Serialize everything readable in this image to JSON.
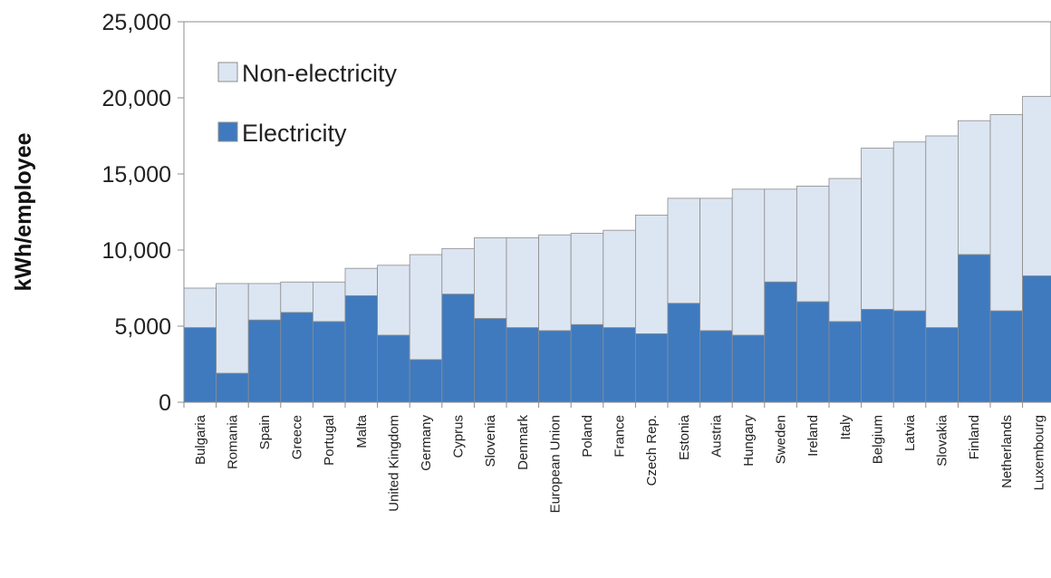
{
  "chart_data": {
    "type": "bar",
    "stacked": true,
    "title": "",
    "xlabel": "",
    "ylabel": "kWh/employee",
    "ylim": [
      0,
      25000
    ],
    "yticks": [
      "0",
      "5,000",
      "10,000",
      "15,000",
      "20,000",
      "25,000"
    ],
    "ytick_values": [
      0,
      5000,
      10000,
      15000,
      20000,
      25000
    ],
    "legend_position": "top-left",
    "categories": [
      "Bulgaria",
      "Romania",
      "Spain",
      "Greece",
      "Portugal",
      "Malta",
      "United Kingdom",
      "Germany",
      "Cyprus",
      "Slovenia",
      "Denmark",
      "European Union",
      "Poland",
      "France",
      "Czech Rep.",
      "Estonia",
      "Austria",
      "Hungary",
      "Sweden",
      "Ireland",
      "Italy",
      "Belgium",
      "Latvia",
      "Slovakia",
      "Finland",
      "Netherlands",
      "Luxembourg"
    ],
    "series": [
      {
        "name": "Electricity",
        "color": "#3f7abf",
        "values": [
          4900,
          1900,
          5400,
          5900,
          5300,
          7000,
          4400,
          2800,
          7100,
          5500,
          4900,
          4700,
          5100,
          4900,
          4500,
          6500,
          4700,
          4400,
          7900,
          6600,
          5300,
          6100,
          6000,
          4900,
          9700,
          6000,
          8300
        ]
      },
      {
        "name": "Non-electricity",
        "color": "#dce6f2",
        "values": [
          2600,
          5900,
          2400,
          2000,
          2600,
          1800,
          4600,
          6900,
          3000,
          5300,
          5900,
          6300,
          6000,
          6400,
          7800,
          6900,
          8700,
          9600,
          6100,
          7600,
          9400,
          10600,
          11100,
          12600,
          8800,
          12900,
          11800
        ]
      }
    ]
  }
}
